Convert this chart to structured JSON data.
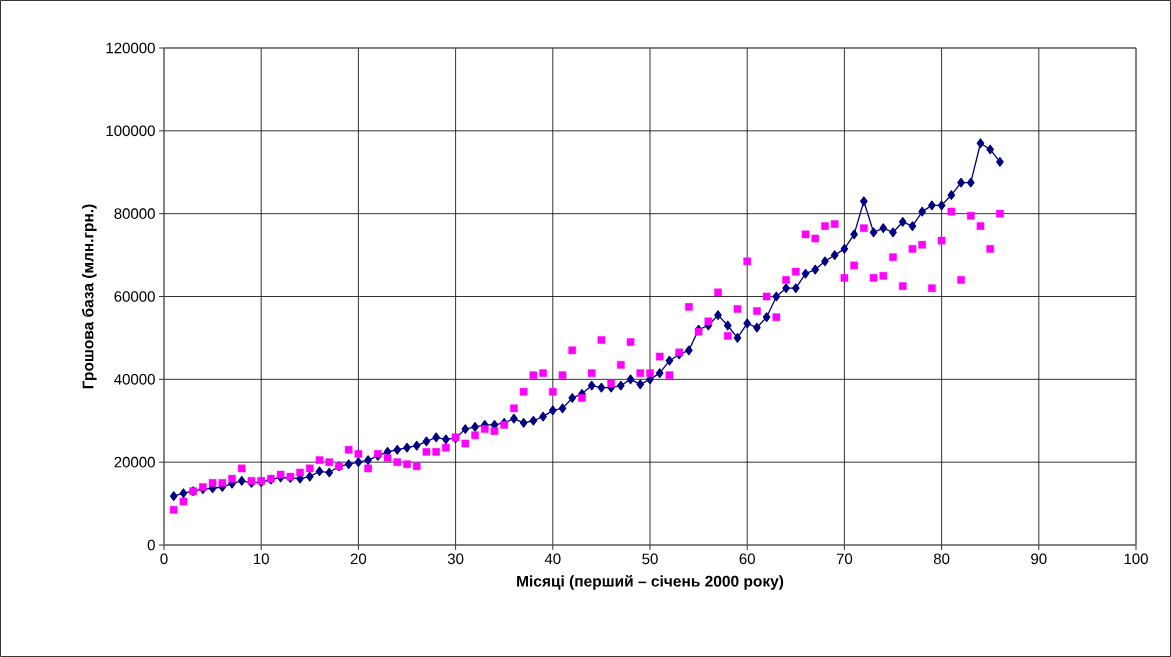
{
  "chart_data": {
    "type": "line",
    "xlabel": "Місяці (перший – січень 2000 року)",
    "ylabel": "Грошова база (млн.грн.)",
    "x": [
      1,
      2,
      3,
      4,
      5,
      6,
      7,
      8,
      9,
      10,
      11,
      12,
      13,
      14,
      15,
      16,
      17,
      18,
      19,
      20,
      21,
      22,
      23,
      24,
      25,
      26,
      27,
      28,
      29,
      30,
      31,
      32,
      33,
      34,
      35,
      36,
      37,
      38,
      39,
      40,
      41,
      42,
      43,
      44,
      45,
      46,
      47,
      48,
      49,
      50,
      51,
      52,
      53,
      54,
      55,
      56,
      57,
      58,
      59,
      60,
      61,
      62,
      63,
      64,
      65,
      66,
      67,
      68,
      69,
      70,
      71,
      72,
      73,
      74,
      75,
      76,
      77,
      78,
      79,
      80,
      81,
      82,
      83,
      84,
      85,
      86
    ],
    "series": [
      {
        "marker": "diamond",
        "color": "#000080",
        "values": [
          11800,
          12500,
          13000,
          13500,
          13700,
          14000,
          14800,
          15500,
          15000,
          15200,
          15800,
          16300,
          16200,
          16000,
          16500,
          17800,
          17500,
          19000,
          19500,
          20000,
          20500,
          21500,
          22500,
          23000,
          23500,
          24000,
          25000,
          26000,
          25500,
          25800,
          28000,
          28500,
          29000,
          29000,
          29500,
          30500,
          29500,
          30000,
          31000,
          32500,
          33000,
          35500,
          36500,
          38500,
          38000,
          38000,
          38500,
          40000,
          38800,
          40000,
          41500,
          44500,
          46000,
          47000,
          52000,
          53000,
          55500,
          53000,
          50000,
          53500,
          52500,
          55000,
          60000,
          62000,
          62000,
          65500,
          66500,
          68500,
          70000,
          71500,
          75000,
          83000,
          75500,
          76500,
          75500,
          78000,
          77000,
          80500,
          82000,
          82000,
          84500,
          87500,
          87500,
          97000,
          95500,
          92500
        ]
      },
      {
        "type": "scatter",
        "marker": "square",
        "color": "#ff00ff",
        "values": [
          8500,
          10500,
          13000,
          14000,
          15000,
          15000,
          16000,
          18500,
          15500,
          15500,
          16000,
          17000,
          16500,
          17500,
          18500,
          20500,
          20000,
          19000,
          23000,
          22000,
          18500,
          22000,
          21000,
          20000,
          19500,
          19000,
          22500,
          22500,
          23500,
          26000,
          24500,
          26500,
          28000,
          27500,
          29000,
          33000,
          37000,
          41000,
          41500,
          37000,
          41000,
          47000,
          35500,
          41500,
          49500,
          39000,
          43500,
          49000,
          41500,
          41500,
          45500,
          41000,
          46500,
          57500,
          51500,
          54000,
          61000,
          50500,
          57000,
          68500,
          56500,
          60000,
          55000,
          64000,
          66000,
          75000,
          74000,
          77000,
          77500,
          64500,
          67500,
          76500,
          64500,
          65000,
          69500,
          62500,
          71500,
          72500,
          62000,
          73500,
          80500,
          64000,
          79500,
          77000,
          71500,
          80000
        ]
      }
    ],
    "xlim": [
      0,
      100
    ],
    "ylim": [
      0,
      120000
    ],
    "xticks": [
      0,
      10,
      20,
      30,
      40,
      50,
      60,
      70,
      80,
      90,
      100
    ],
    "yticks": [
      0,
      20000,
      40000,
      60000,
      80000,
      100000,
      120000
    ],
    "grid": true
  }
}
